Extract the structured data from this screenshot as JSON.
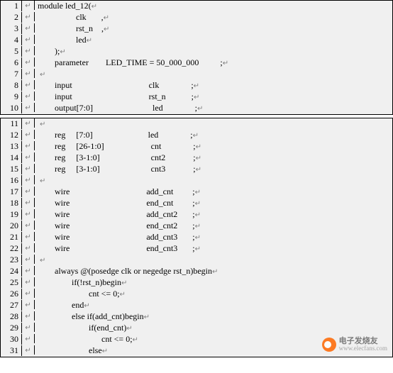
{
  "block1": {
    "background": "#f0f0f0",
    "border_color": "#000000",
    "lines": [
      {
        "n": "1",
        "p": "↵",
        "code": "module led_12(",
        "end": "↵"
      },
      {
        "n": "2",
        "p": "↵",
        "code": "                  clk       ,",
        "end": "↵"
      },
      {
        "n": "3",
        "p": "↵",
        "code": "                  rst_n    ,",
        "end": "↵"
      },
      {
        "n": "4",
        "p": "↵",
        "code": "                  led",
        "end": "↵"
      },
      {
        "n": "5",
        "p": "↵",
        "code": "        );",
        "end": "↵"
      },
      {
        "n": "6",
        "p": "↵",
        "code": "        parameter        LED_TIME = 50_000_000          ;",
        "end": "↵"
      },
      {
        "n": "7",
        "p": "↵",
        "code": " ",
        "end": "↵"
      },
      {
        "n": "8",
        "p": "↵",
        "code": "        input                                    clk               ;",
        "end": "↵"
      },
      {
        "n": "9",
        "p": "↵",
        "code": "        input                                    rst_n            ;",
        "end": "↵"
      },
      {
        "n": "10",
        "p": "↵",
        "code": "        output[7:0]                            led               ;",
        "end": "↵"
      }
    ]
  },
  "block2": {
    "background": "#f0f0f0",
    "border_color": "#000000",
    "lines": [
      {
        "n": "11",
        "p": "↵",
        "code": " ",
        "end": "↵"
      },
      {
        "n": "12",
        "p": "↵",
        "code": "        reg     [7:0]                          led               ;",
        "end": "↵"
      },
      {
        "n": "13",
        "p": "↵",
        "code": "        reg     [26-1:0]                      cnt               ;",
        "end": "↵"
      },
      {
        "n": "14",
        "p": "↵",
        "code": "        reg     [3-1:0]                        cnt2             ;",
        "end": "↵"
      },
      {
        "n": "15",
        "p": "↵",
        "code": "        reg     [3-1:0]                        cnt3             ;",
        "end": "↵"
      },
      {
        "n": "16",
        "p": "↵",
        "code": " ",
        "end": "↵"
      },
      {
        "n": "17",
        "p": "↵",
        "code": "        wire                                    add_cnt         ;",
        "end": "↵"
      },
      {
        "n": "18",
        "p": "↵",
        "code": "        wire                                    end_cnt         ;",
        "end": "↵"
      },
      {
        "n": "19",
        "p": "↵",
        "code": "        wire                                    add_cnt2       ;",
        "end": "↵"
      },
      {
        "n": "20",
        "p": "↵",
        "code": "        wire                                    end_cnt2       ;",
        "end": "↵"
      },
      {
        "n": "21",
        "p": "↵",
        "code": "        wire                                    add_cnt3       ;",
        "end": "↵"
      },
      {
        "n": "22",
        "p": "↵",
        "code": "        wire                                    end_cnt3       ;",
        "end": "↵"
      },
      {
        "n": "23",
        "p": "↵",
        "code": " ",
        "end": "↵"
      },
      {
        "n": "24",
        "p": "↵",
        "code": "        always @(posedge clk or negedge rst_n)begin",
        "end": "↵"
      },
      {
        "n": "25",
        "p": "↵",
        "code": "                if(!rst_n)begin",
        "end": "↵"
      },
      {
        "n": "26",
        "p": "↵",
        "code": "                        cnt <= 0;",
        "end": "↵"
      },
      {
        "n": "27",
        "p": "↵",
        "code": "                end",
        "end": "↵"
      },
      {
        "n": "28",
        "p": "↵",
        "code": "                else if(add_cnt)begin",
        "end": "↵"
      },
      {
        "n": "29",
        "p": "↵",
        "code": "                        if(end_cnt)",
        "end": "↵"
      },
      {
        "n": "30",
        "p": "↵",
        "code": "                              cnt <= 0;",
        "end": "↵"
      },
      {
        "n": "31",
        "p": "↵",
        "code": "                        else",
        "end": "↵"
      }
    ]
  },
  "watermark": {
    "cn_text": "电子发烧友",
    "url_text": "www.elecfans.com",
    "icon_color": "#ff6600"
  }
}
